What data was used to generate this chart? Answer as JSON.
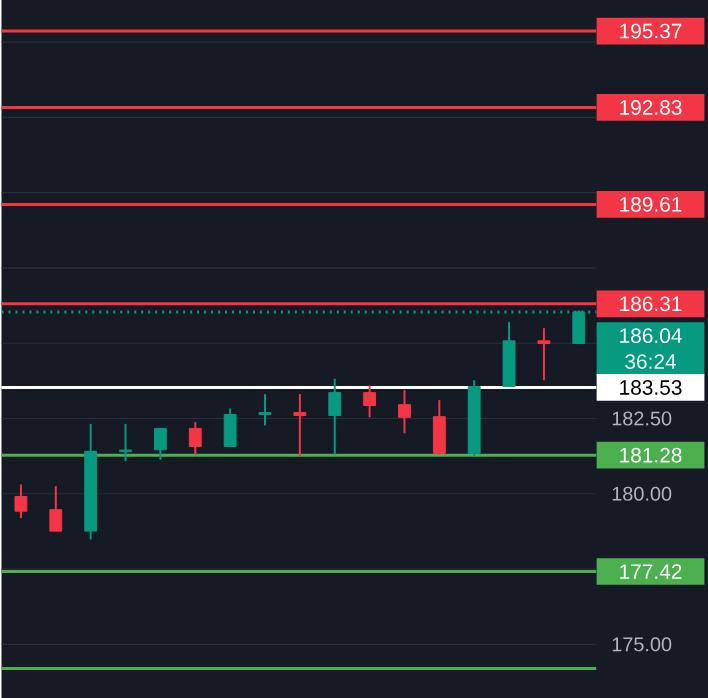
{
  "chart_data": {
    "type": "candlestick",
    "categories": [
      null,
      null,
      null,
      null,
      null,
      null,
      null,
      null,
      null,
      null,
      null,
      null,
      null,
      null,
      null,
      null,
      null
    ],
    "ohlc": [
      [
        179.91,
        180.31,
        179.19,
        179.42
      ],
      [
        179.47,
        180.25,
        178.76,
        178.76
      ],
      [
        178.76,
        182.32,
        178.48,
        181.41
      ],
      [
        181.4,
        182.32,
        181.08,
        181.45
      ],
      [
        181.46,
        182.19,
        181.13,
        182.17
      ],
      [
        182.17,
        182.38,
        181.3,
        181.57
      ],
      [
        181.57,
        182.83,
        181.57,
        182.63
      ],
      [
        182.63,
        183.31,
        182.27,
        182.7
      ],
      [
        182.7,
        183.31,
        181.24,
        182.6
      ],
      [
        182.6,
        183.82,
        181.3,
        183.36
      ],
      [
        183.36,
        183.6,
        182.54,
        182.93
      ],
      [
        182.96,
        183.44,
        182.01,
        182.54
      ],
      [
        182.56,
        183.11,
        181.3,
        181.34
      ],
      [
        181.34,
        183.77,
        181.24,
        183.56
      ],
      [
        183.56,
        185.7,
        183.56,
        185.08
      ],
      [
        185.08,
        185.5,
        183.77,
        184.99
      ],
      [
        184.99,
        186.09,
        184.99,
        186.04
      ]
    ],
    "colors": [
      "#f23645",
      "#f23645",
      "#089981",
      "#089981",
      "#089981",
      "#f23645",
      "#089981",
      "#089981",
      "#f23645",
      "#089981",
      "#f23645",
      "#f23645",
      "#f23645",
      "#089981",
      "#089981",
      "#f23645",
      "#089981"
    ],
    "ylim": [
      173.2,
      196.4
    ],
    "yticks": [
      {
        "value": 175,
        "label": "175.00"
      },
      {
        "value": 177.5,
        "label": null
      },
      {
        "value": 180,
        "label": "180.00"
      },
      {
        "value": 182.5,
        "label": "182.50"
      },
      {
        "value": 185,
        "label": null
      },
      {
        "value": 187.5,
        "label": null
      },
      {
        "value": 190,
        "label": null
      },
      {
        "value": 192.5,
        "label": null
      },
      {
        "value": 195,
        "label": null
      }
    ],
    "tick_labels": "y",
    "grid": "y",
    "ref_lines": [
      {
        "axis": "y",
        "value": 195.37,
        "label": "195.37",
        "color": "#f23645"
      },
      {
        "axis": "y",
        "value": 192.83,
        "label": "192.83",
        "color": "#f23645"
      },
      {
        "axis": "y",
        "value": 189.61,
        "label": "189.61",
        "color": "#f23645"
      },
      {
        "axis": "y",
        "value": 186.31,
        "label": "186.31",
        "color": "#f23645"
      },
      {
        "axis": "y",
        "value": 186.04,
        "label": "186.04",
        "color": "#089981",
        "line_style": "dotted"
      },
      {
        "axis": "y",
        "value": 183.53,
        "label": "183.53",
        "color": "#ffffff"
      },
      {
        "axis": "y",
        "value": 181.28,
        "label": "181.28",
        "color": "#4caf50"
      },
      {
        "axis": "y",
        "value": 177.42,
        "label": "177.42",
        "color": "#4caf50"
      },
      {
        "axis": "y",
        "value": 174.2,
        "label": null,
        "color": "#4caf50"
      }
    ],
    "annotations": [
      "36:24"
    ]
  }
}
